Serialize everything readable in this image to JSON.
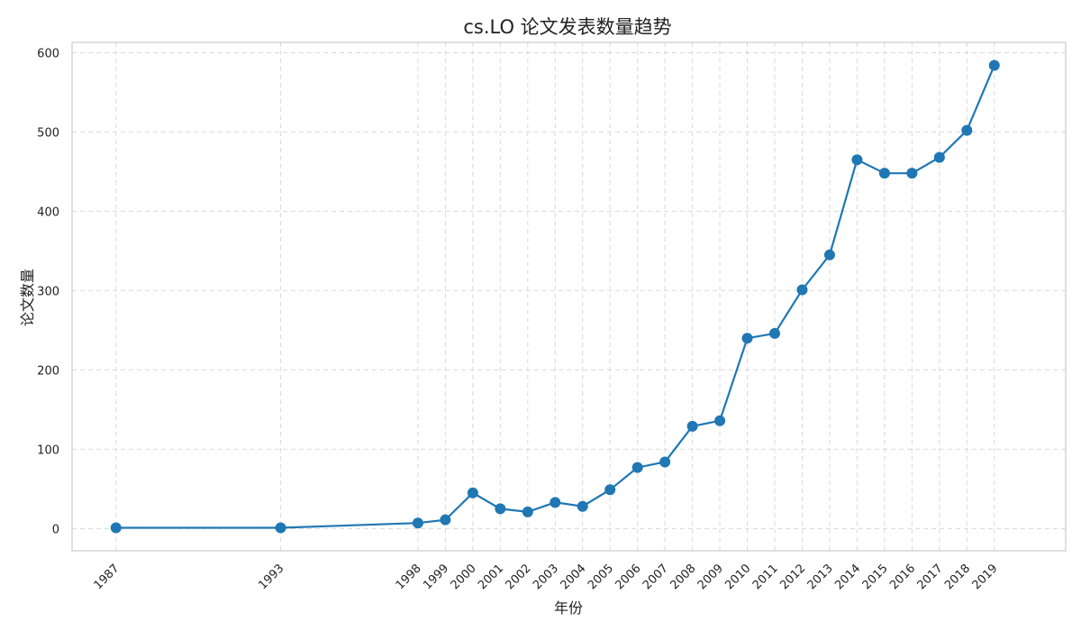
{
  "chart_data": {
    "type": "line",
    "title": "cs.LO 论文发表数量趋势",
    "xlabel": "年份",
    "ylabel": "论文数量",
    "x": [
      1987,
      1993,
      1998,
      1999,
      2000,
      2001,
      2002,
      2003,
      2004,
      2005,
      2006,
      2007,
      2008,
      2009,
      2010,
      2011,
      2012,
      2013,
      2014,
      2015,
      2016,
      2017,
      2018,
      2019
    ],
    "y": [
      1,
      1,
      7,
      11,
      45,
      25,
      21,
      33,
      28,
      49,
      77,
      84,
      129,
      136,
      240,
      246,
      301,
      345,
      465,
      448,
      448,
      468,
      502,
      584
    ],
    "xticks": [
      "1987",
      "1993",
      "1998",
      "1999",
      "2000",
      "2001",
      "2002",
      "2003",
      "2004",
      "2005",
      "2006",
      "2007",
      "2008",
      "2009",
      "2010",
      "2011",
      "2012",
      "2013",
      "2014",
      "2015",
      "2016",
      "2017",
      "2018",
      "2019"
    ],
    "yticks": [
      0,
      100,
      200,
      300,
      400,
      500,
      600
    ],
    "xlim": [
      1985.4,
      2021.6
    ],
    "ylim": [
      -28,
      613
    ],
    "grid": true,
    "line_color": "#1f77b4",
    "marker": "circle"
  }
}
